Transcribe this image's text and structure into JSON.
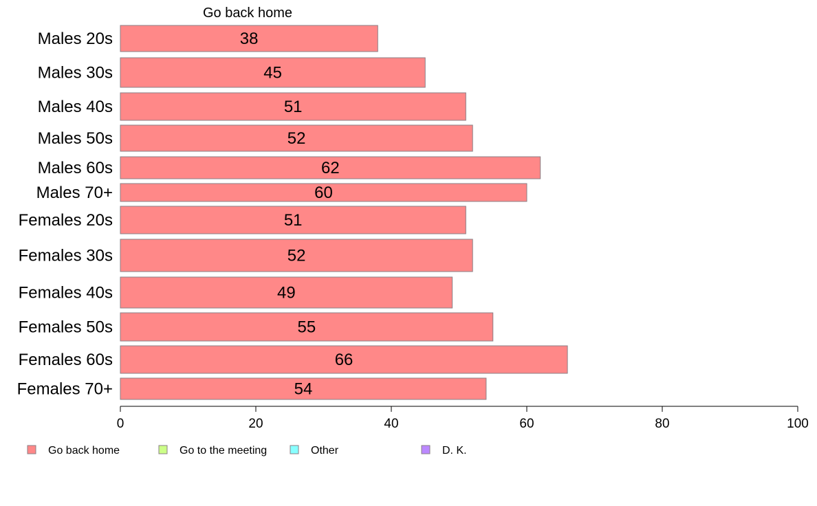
{
  "chart_data": {
    "type": "bar",
    "orientation": "horizontal",
    "stacked": true,
    "title": "Go back home",
    "xlim": [
      0,
      100
    ],
    "xticks": [
      0,
      20,
      40,
      60,
      80,
      100
    ],
    "grid": false,
    "legend_position": "bottom",
    "categories": [
      "Males 20s",
      "Males 30s",
      "Males 40s",
      "Males 50s",
      "Males 60s",
      "Males 70+",
      "Females 20s",
      "Females 30s",
      "Females 40s",
      "Females 50s",
      "Females 60s",
      "Females 70+"
    ],
    "series": [
      {
        "name": "Go back home",
        "color": "#ff8888",
        "values": [
          38,
          45,
          51,
          52,
          62,
          60,
          51,
          52,
          49,
          55,
          66,
          54
        ],
        "labels": [
          "38",
          "45",
          "51",
          "52",
          "62",
          "60",
          "51",
          "52",
          "49",
          "55",
          "66",
          "54"
        ]
      }
    ],
    "legend": [
      {
        "name": "Go back home",
        "color": "#ff8888"
      },
      {
        "name": "Go to the meeting",
        "color": "#ccff88"
      },
      {
        "name": "Other",
        "color": "#88ffff"
      },
      {
        "name": "D. K.",
        "color": "#bb88ff"
      }
    ]
  }
}
